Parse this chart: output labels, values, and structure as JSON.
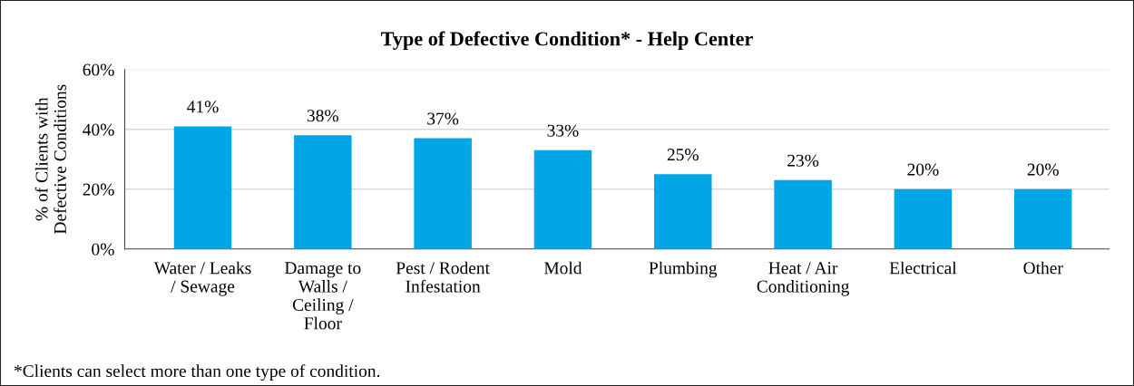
{
  "chart_data": {
    "type": "bar",
    "title": "Type of Defective Condition* - Help Center",
    "ylabel": "% of Clients with\nDefective Conditions",
    "categories": [
      "Water / Leaks\n/ Sewage",
      "Damage to\nWalls /\nCeiling /\nFloor",
      "Pest / Rodent\nInfestation",
      "Mold",
      "Plumbing",
      "Heat / Air\nConditioning",
      "Electrical",
      "Other"
    ],
    "values": [
      41,
      38,
      37,
      33,
      25,
      23,
      20,
      20
    ],
    "color": "#00a6e6",
    "value_labels": [
      "41%",
      "38%",
      "37%",
      "33%",
      "25%",
      "23%",
      "20%",
      "20%"
    ],
    "ylim": [
      0,
      60
    ],
    "yticks": [
      {
        "value": 0,
        "label": "0%"
      },
      {
        "value": 20,
        "label": "20%"
      },
      {
        "value": 40,
        "label": "40%"
      },
      {
        "value": 60,
        "label": "60%"
      }
    ],
    "grid": "y",
    "legend": false,
    "annotations": [
      "*Clients can select more than one type of condition."
    ]
  }
}
